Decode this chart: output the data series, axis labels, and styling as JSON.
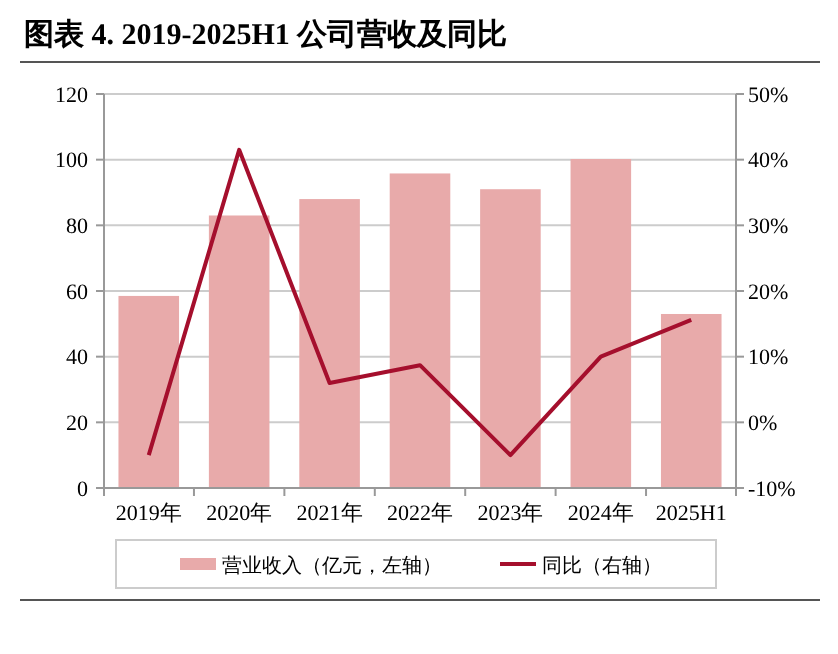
{
  "chart_data": {
    "type": "bar",
    "title": "图表 4. 2019-2025H1 公司营收及同比",
    "categories": [
      "2019年",
      "2020年",
      "2021年",
      "2022年",
      "2023年",
      "2024年",
      "2025H1"
    ],
    "series": [
      {
        "name": "营业收入（亿元，左轴）",
        "color": "#e8aaaa",
        "values": [
          58.5,
          83,
          88,
          95.8,
          91,
          100.2,
          53
        ]
      },
      {
        "name": "同比（右轴）",
        "type": "line",
        "axis": "y2",
        "color": "#a50f2d",
        "values": [
          -5,
          41.5,
          6,
          8.7,
          -5,
          10,
          15.6
        ]
      }
    ],
    "ylim": [
      0,
      120
    ],
    "yticks": [
      0,
      20,
      40,
      60,
      80,
      100,
      120
    ],
    "y2lim": [
      -10,
      50
    ],
    "y2ticks": [
      {
        "value": -10,
        "label": "-10%"
      },
      {
        "value": 0,
        "label": "0%"
      },
      {
        "value": 10,
        "label": "10%"
      },
      {
        "value": 20,
        "label": "20%"
      },
      {
        "value": 30,
        "label": "30%"
      },
      {
        "value": 40,
        "label": "40%"
      },
      {
        "value": 50,
        "label": "50%"
      }
    ],
    "grid": "y",
    "legend": "bottom"
  }
}
